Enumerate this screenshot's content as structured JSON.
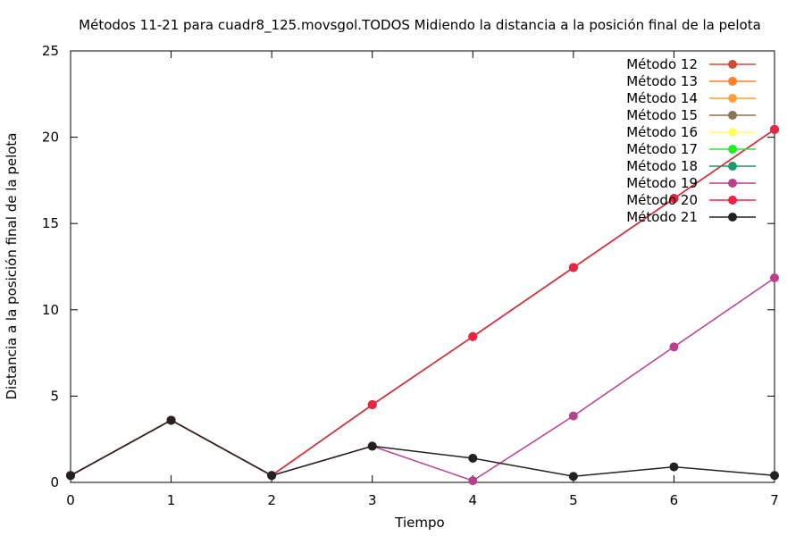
{
  "chart_data": {
    "type": "line",
    "title": "Métodos 11-21 para cuadr8_125.movsgol.TODOS Midiendo la distancia a la posición final de la pelota",
    "xlabel": "Tiempo",
    "ylabel": "Distancia a la posición final de la pelota",
    "xlim": [
      0,
      7
    ],
    "ylim": [
      0,
      25
    ],
    "x_ticks": [
      0,
      1,
      2,
      3,
      4,
      5,
      6,
      7
    ],
    "y_ticks": [
      0,
      5,
      10,
      15,
      20,
      25
    ],
    "grid": false,
    "legend_position": "top-right",
    "x": [
      0,
      1,
      2,
      3,
      4,
      5,
      6,
      7
    ],
    "series": [
      {
        "name": "Método 12",
        "color": "#d04a3c",
        "values": [
          0.4,
          3.6,
          0.4,
          4.5,
          8.45,
          12.45,
          16.45,
          20.45
        ]
      },
      {
        "name": "Método 13",
        "color": "#ff7f2a",
        "values": [
          0.4,
          3.6,
          0.4,
          4.5,
          8.45,
          12.45,
          16.45,
          20.45
        ]
      },
      {
        "name": "Método 14",
        "color": "#ffa040",
        "values": [
          0.4,
          3.6,
          0.4,
          4.5,
          8.45,
          12.45,
          16.45,
          20.45
        ]
      },
      {
        "name": "Método 15",
        "color": "#8b7355",
        "values": [
          0.4,
          3.6,
          0.4,
          4.5,
          8.45,
          12.45,
          16.45,
          20.45
        ]
      },
      {
        "name": "Método 16",
        "color": "#ffff66",
        "values": [
          0.4,
          3.6,
          0.4,
          4.5,
          8.45,
          12.45,
          16.45,
          20.45
        ]
      },
      {
        "name": "Método 17",
        "color": "#22ee22",
        "values": [
          0.4,
          3.6,
          0.4,
          4.5,
          8.45,
          12.45,
          16.45,
          20.45
        ]
      },
      {
        "name": "Método 18",
        "color": "#1a9a6a",
        "values": [
          0.4,
          3.6,
          0.4,
          4.5,
          8.45,
          12.45,
          16.45,
          20.45
        ]
      },
      {
        "name": "Método 19",
        "color": "#b8408c",
        "values": [
          0.4,
          3.6,
          0.4,
          2.1,
          0.1,
          3.85,
          7.85,
          11.85
        ]
      },
      {
        "name": "Método 20",
        "color": "#ee2244",
        "values": [
          0.4,
          3.6,
          0.4,
          4.5,
          8.45,
          12.45,
          16.45,
          20.45
        ]
      },
      {
        "name": "Método 21",
        "color": "#222222",
        "values": [
          0.4,
          3.6,
          0.4,
          2.1,
          1.4,
          0.35,
          0.9,
          0.4
        ]
      }
    ]
  }
}
